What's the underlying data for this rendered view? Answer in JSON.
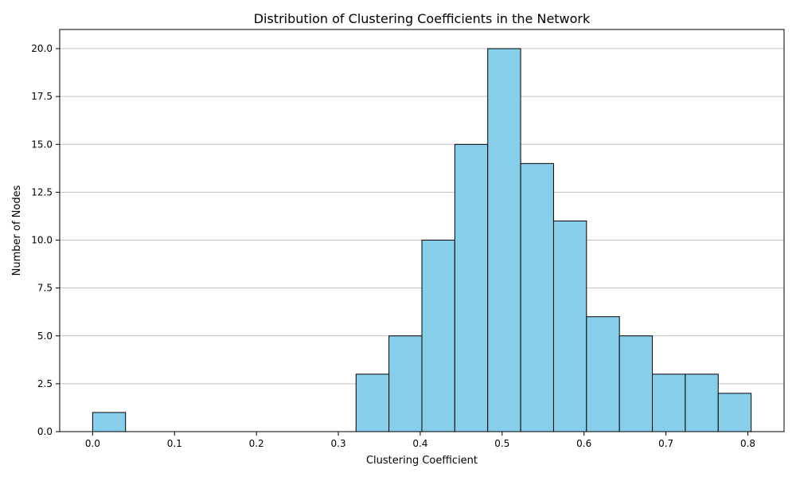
{
  "chart_data": {
    "type": "bar",
    "title": "Distribution of Clustering Coefficients in the Network",
    "xlabel": "Clustering Coefficient",
    "ylabel": "Number of Nodes",
    "bins": [
      {
        "x0": 0.0,
        "x1": 0.0402,
        "count": 1
      },
      {
        "x0": 0.0402,
        "x1": 0.0804,
        "count": 0
      },
      {
        "x0": 0.0804,
        "x1": 0.1206,
        "count": 0
      },
      {
        "x0": 0.1206,
        "x1": 0.1608,
        "count": 0
      },
      {
        "x0": 0.1608,
        "x1": 0.201,
        "count": 0
      },
      {
        "x0": 0.201,
        "x1": 0.2412,
        "count": 0
      },
      {
        "x0": 0.2412,
        "x1": 0.2814,
        "count": 0
      },
      {
        "x0": 0.2814,
        "x1": 0.3216,
        "count": 0
      },
      {
        "x0": 0.3216,
        "x1": 0.3618,
        "count": 3
      },
      {
        "x0": 0.3618,
        "x1": 0.402,
        "count": 5
      },
      {
        "x0": 0.402,
        "x1": 0.4422,
        "count": 10
      },
      {
        "x0": 0.4422,
        "x1": 0.4824,
        "count": 15
      },
      {
        "x0": 0.4824,
        "x1": 0.5226,
        "count": 20
      },
      {
        "x0": 0.5226,
        "x1": 0.5628,
        "count": 14
      },
      {
        "x0": 0.5628,
        "x1": 0.603,
        "count": 11
      },
      {
        "x0": 0.603,
        "x1": 0.6432,
        "count": 6
      },
      {
        "x0": 0.6432,
        "x1": 0.6834,
        "count": 5
      },
      {
        "x0": 0.6834,
        "x1": 0.7236,
        "count": 3
      },
      {
        "x0": 0.7236,
        "x1": 0.7638,
        "count": 3
      },
      {
        "x0": 0.7638,
        "x1": 0.804,
        "count": 2
      }
    ],
    "xlim": [
      -0.0402,
      0.8442
    ],
    "ylim": [
      0,
      21
    ],
    "xticks": [
      0.0,
      0.1,
      0.2,
      0.3,
      0.4,
      0.5,
      0.6,
      0.7,
      0.8
    ],
    "xtick_labels": [
      "0.0",
      "0.1",
      "0.2",
      "0.3",
      "0.4",
      "0.5",
      "0.6",
      "0.7",
      "0.8"
    ],
    "yticks": [
      0.0,
      2.5,
      5.0,
      7.5,
      10.0,
      12.5,
      15.0,
      17.5,
      20.0
    ],
    "ytick_labels": [
      "0.0",
      "2.5",
      "5.0",
      "7.5",
      "10.0",
      "12.5",
      "15.0",
      "17.5",
      "20.0"
    ],
    "grid": {
      "axis": "y",
      "on": true
    },
    "colors": {
      "bar_fill": "#87ceeb",
      "bar_edge": "#000000",
      "grid": "#c0c0c0",
      "axes": "#000000"
    }
  }
}
